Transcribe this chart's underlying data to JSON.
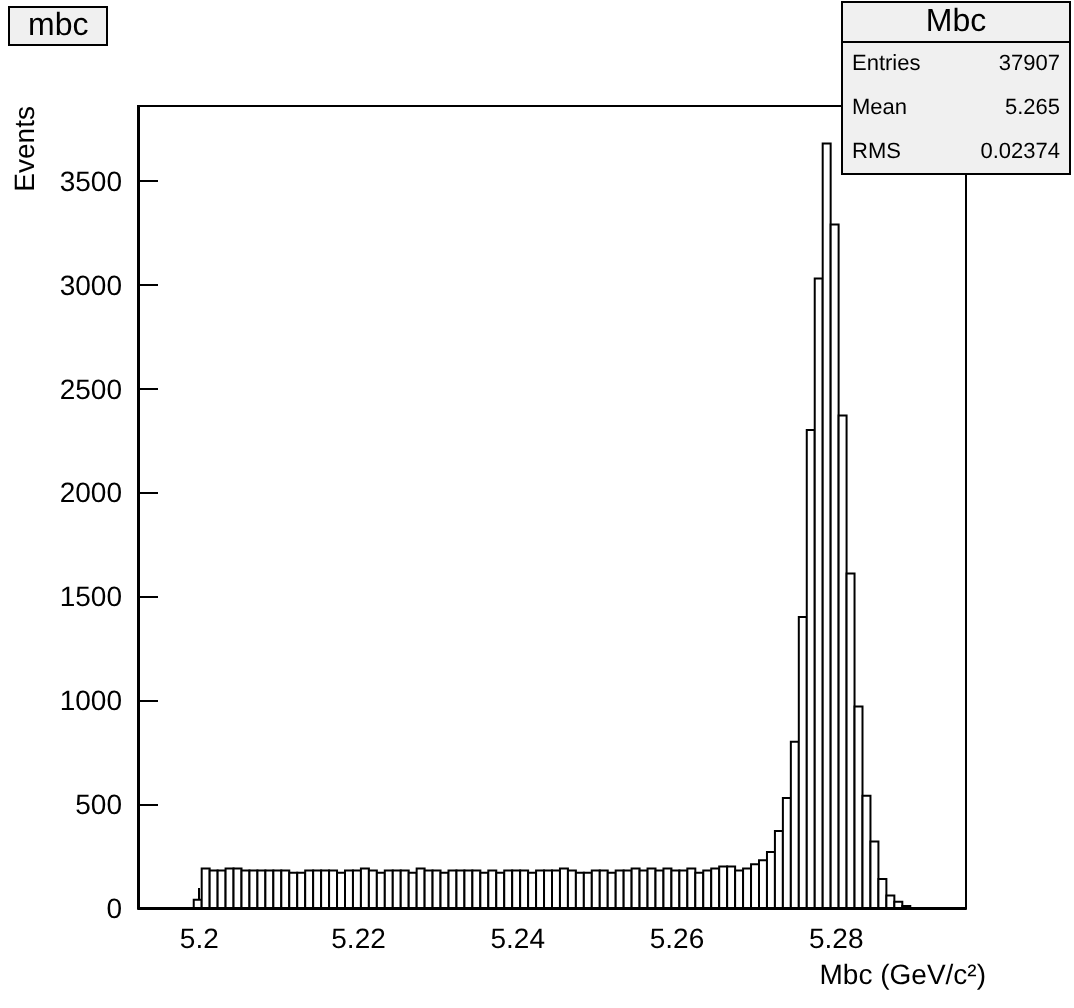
{
  "chart_data": {
    "type": "histogram",
    "title": "mbc",
    "xlabel": "Mbc (GeV/c²)",
    "ylabel": "Events",
    "bins": [
      5.1923,
      5.1933,
      5.1943,
      5.1953,
      5.1963,
      5.1973,
      5.1983,
      5.1993,
      5.2003,
      5.2013,
      5.2023,
      5.2033,
      5.2043,
      5.2053,
      5.2063,
      5.2073,
      5.2083,
      5.2093,
      5.2103,
      5.2113,
      5.2123,
      5.2133,
      5.2143,
      5.2153,
      5.2163,
      5.2173,
      5.2183,
      5.2193,
      5.2203,
      5.2213,
      5.2223,
      5.2233,
      5.2243,
      5.2253,
      5.2263,
      5.2273,
      5.2283,
      5.2293,
      5.2303,
      5.2313,
      5.2323,
      5.2333,
      5.2343,
      5.2353,
      5.2363,
      5.2373,
      5.2383,
      5.2393,
      5.2403,
      5.2413,
      5.2423,
      5.2433,
      5.2443,
      5.2453,
      5.2463,
      5.2473,
      5.2483,
      5.2493,
      5.2503,
      5.2513,
      5.2523,
      5.2533,
      5.2543,
      5.2553,
      5.2563,
      5.2573,
      5.2583,
      5.2593,
      5.2603,
      5.2613,
      5.2623,
      5.2633,
      5.2643,
      5.2653,
      5.2663,
      5.2673,
      5.2683,
      5.2693,
      5.2703,
      5.2713,
      5.2723,
      5.2733,
      5.2743,
      5.2753,
      5.2763,
      5.2773,
      5.2783,
      5.2793,
      5.2803,
      5.2813,
      5.2823,
      5.2833,
      5.2843,
      5.2853,
      5.2863,
      5.2873,
      5.2883,
      5.2893,
      5.2903,
      5.2913,
      5.2923,
      5.2933,
      5.2943,
      5.2953,
      5.2963
    ],
    "values": [
      0,
      0,
      0,
      0,
      0,
      0,
      0,
      40,
      190,
      180,
      180,
      190,
      190,
      180,
      180,
      180,
      180,
      180,
      180,
      170,
      170,
      180,
      180,
      180,
      180,
      170,
      180,
      180,
      190,
      180,
      170,
      180,
      180,
      180,
      170,
      190,
      180,
      180,
      170,
      180,
      180,
      180,
      180,
      170,
      180,
      170,
      180,
      180,
      180,
      170,
      180,
      180,
      180,
      190,
      180,
      170,
      170,
      180,
      180,
      170,
      180,
      180,
      190,
      180,
      190,
      180,
      190,
      180,
      180,
      190,
      170,
      180,
      190,
      200,
      200,
      180,
      190,
      210,
      230,
      270,
      370,
      530,
      800,
      1400,
      2300,
      3030,
      3680,
      3290,
      2370,
      1610,
      970,
      540,
      320,
      140,
      60,
      30,
      10,
      0,
      0,
      0,
      0,
      0,
      0,
      0
    ],
    "color": "#000000",
    "xlim": [
      5.1923,
      5.2963
    ],
    "xticks": [
      5.2,
      5.22,
      5.24,
      5.26,
      5.28
    ],
    "ylim": [
      0,
      3860
    ],
    "yticks": [
      0,
      500,
      1000,
      1500,
      2000,
      2500,
      3000,
      3500
    ],
    "grid": false,
    "annotations": [
      "Mbc",
      "Entries",
      "37907",
      "Mean",
      "5.265",
      "RMS",
      "0.02374"
    ]
  }
}
